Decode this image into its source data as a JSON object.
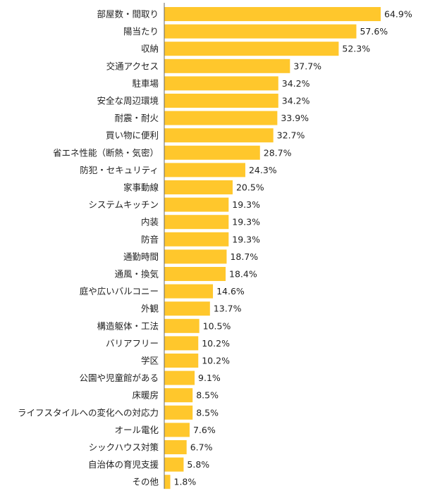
{
  "chart_data": {
    "type": "bar",
    "orientation": "horizontal",
    "title": "",
    "xlabel": "",
    "ylabel": "",
    "xlim": [
      0,
      70
    ],
    "grid": false,
    "legend": "none",
    "bar_color": "#FFC72C",
    "axis_color": "#666666",
    "categories": [
      "部屋数・間取り",
      "陽当たり",
      "収納",
      "交通アクセス",
      "駐車場",
      "安全な周辺環境",
      "耐震・耐火",
      "買い物に便利",
      "省エネ性能（断熱・気密）",
      "防犯・セキュリティ",
      "家事動線",
      "システムキッチン",
      "内装",
      "防音",
      "通勤時間",
      "通風・換気",
      "庭や広いバルコニー",
      "外観",
      "構造躯体・工法",
      "バリアフリー",
      "学区",
      "公園や児童館がある",
      "床暖房",
      "ライフスタイルへの変化への対応力",
      "オール電化",
      "シックハウス対策",
      "自治体の育児支援",
      "その他"
    ],
    "values": [
      64.9,
      57.6,
      52.3,
      37.7,
      34.2,
      34.2,
      33.9,
      32.7,
      28.7,
      24.3,
      20.5,
      19.3,
      19.3,
      19.3,
      18.7,
      18.4,
      14.6,
      13.7,
      10.5,
      10.2,
      10.2,
      9.1,
      8.5,
      8.5,
      7.6,
      6.7,
      5.8,
      1.8
    ],
    "value_labels": [
      "64.9%",
      "57.6%",
      "52.3%",
      "37.7%",
      "34.2%",
      "34.2%",
      "33.9%",
      "32.7%",
      "28.7%",
      "24.3%",
      "20.5%",
      "19.3%",
      "19.3%",
      "19.3%",
      "18.7%",
      "18.4%",
      "14.6%",
      "13.7%",
      "10.5%",
      "10.2%",
      "10.2%",
      "9.1%",
      "8.5%",
      "8.5%",
      "7.6%",
      "6.7%",
      "5.8%",
      "1.8%"
    ]
  }
}
